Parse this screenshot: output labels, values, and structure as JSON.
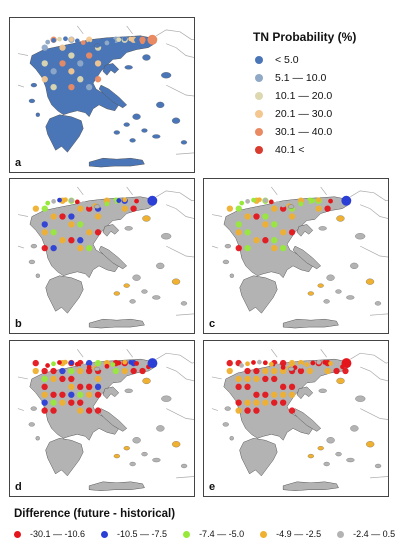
{
  "legend_tn": {
    "title": "TN Probability (%)",
    "items": [
      {
        "label": "< 5.0",
        "color": "#4a76b8"
      },
      {
        "label": "5.1 — 10.0",
        "color": "#8fa9c7"
      },
      {
        "label": "10.1 — 20.0",
        "color": "#ddd8b0"
      },
      {
        "label": "20.1 — 30.0",
        "color": "#f3c78f"
      },
      {
        "label": "30.1 — 40.0",
        "color": "#ea8a63"
      },
      {
        "label": "40.1 <",
        "color": "#d93b2e"
      }
    ]
  },
  "legend_diff": {
    "title": "Difference (future - historical)",
    "items": [
      {
        "label": "-30.1 — -10.6",
        "color": "#e4161c"
      },
      {
        "label": "-10.5 — -7.5",
        "color": "#2b3fd6"
      },
      {
        "label": "-7.4 — -5.0",
        "color": "#98e83c"
      },
      {
        "label": "-4.9 — -2.5",
        "color": "#f0b030"
      },
      {
        "label": "-2.4 — 0.5",
        "color": "#b3b3b3"
      }
    ]
  },
  "panels": [
    {
      "label": "a",
      "scheme": "tn"
    },
    {
      "label": "b",
      "scheme": "diff1"
    },
    {
      "label": "c",
      "scheme": "diff2"
    },
    {
      "label": "d",
      "scheme": "diff3"
    },
    {
      "label": "e",
      "scheme": "diff4"
    }
  ]
}
